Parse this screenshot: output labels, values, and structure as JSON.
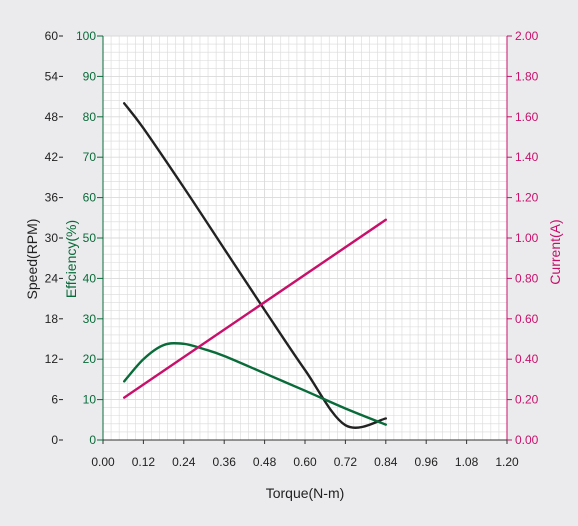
{
  "colors": {
    "background": "#ebebed",
    "plot_background": "#ffffff",
    "grid": "#d9d9d9",
    "speed": "#222222",
    "efficiency": "#0a6b3a",
    "current": "#c8106b"
  },
  "chart_data": {
    "type": "line",
    "xlabel": "Torque(N-m)",
    "x_ticks": [
      "0.00",
      "0.12",
      "0.24",
      "0.36",
      "0.48",
      "0.60",
      "0.72",
      "0.84",
      "0.96",
      "1.08",
      "1.20"
    ],
    "xlim": [
      0,
      1.2
    ],
    "grid": true,
    "axes": {
      "speed": {
        "label": "Speed(RPM)",
        "side": "left-outer",
        "ylim": [
          0,
          60
        ],
        "ticks": [
          "0",
          "6",
          "12",
          "18",
          "24",
          "30",
          "36",
          "42",
          "48",
          "54",
          "60"
        ]
      },
      "efficiency": {
        "label": "Effciency(%)",
        "side": "left-inner",
        "ylim": [
          0,
          100
        ],
        "ticks": [
          "0",
          "10",
          "20",
          "30",
          "40",
          "50",
          "60",
          "70",
          "80",
          "90",
          "100"
        ]
      },
      "current": {
        "label": "Current(A)",
        "side": "right",
        "ylim": [
          0,
          2.0
        ],
        "ticks": [
          "0.00",
          "0.20",
          "0.40",
          "0.60",
          "0.80",
          "1.00",
          "1.20",
          "1.40",
          "1.60",
          "1.80",
          "2.00"
        ]
      }
    },
    "series": [
      {
        "key": "speed",
        "axis": "speed",
        "x": [
          0.063,
          0.12,
          0.24,
          0.36,
          0.48,
          0.6,
          0.72,
          0.84
        ],
        "y": [
          50.0,
          46.3,
          37.5,
          28.4,
          19.3,
          10.4,
          2.2,
          3.2
        ]
      },
      {
        "key": "efficiency",
        "axis": "efficiency",
        "x": [
          0.063,
          0.12,
          0.18,
          0.24,
          0.3,
          0.36,
          0.48,
          0.6,
          0.72,
          0.84
        ],
        "y": [
          14.5,
          20.0,
          23.5,
          23.8,
          22.5,
          20.8,
          16.5,
          12.2,
          7.8,
          3.8
        ]
      },
      {
        "key": "current",
        "axis": "current",
        "x": [
          0.063,
          0.84
        ],
        "y": [
          0.21,
          1.09
        ]
      }
    ]
  }
}
